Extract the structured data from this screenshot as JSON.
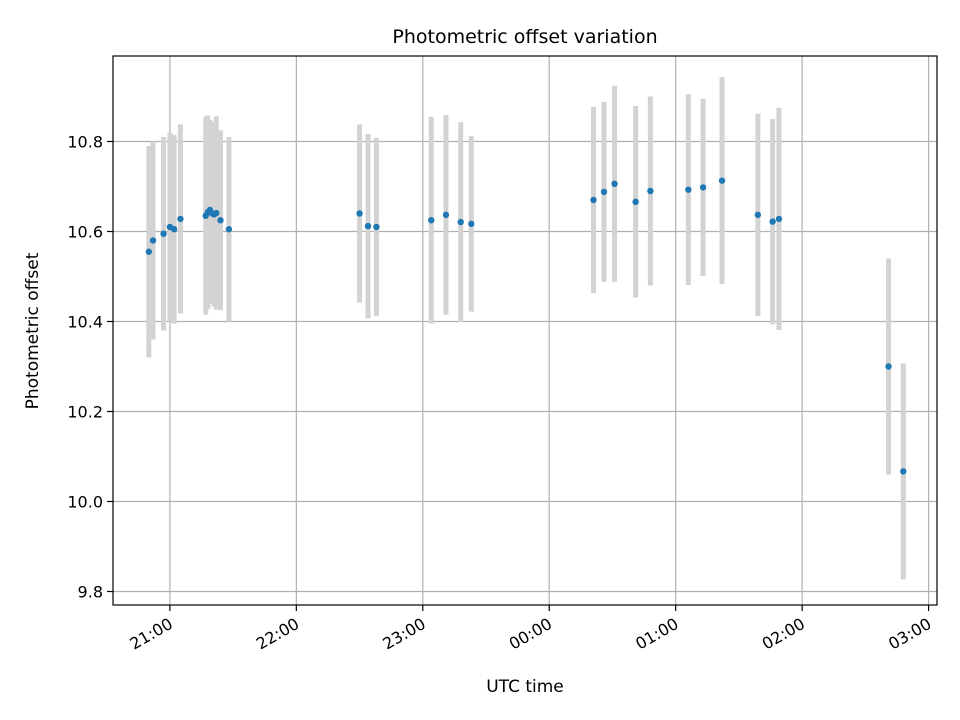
{
  "chart_data": {
    "type": "scatter",
    "title": "Photometric offset variation",
    "xlabel": "UTC time",
    "ylabel": "Photometric offset",
    "x_tick_labels": [
      "21:00",
      "22:00",
      "23:00",
      "00:00",
      "01:00",
      "02:00",
      "03:00"
    ],
    "x_tick_values": [
      0,
      60,
      120,
      180,
      240,
      300,
      360
    ],
    "y_tick_values": [
      9.8,
      10.0,
      10.2,
      10.4,
      10.6,
      10.8
    ],
    "y_tick_labels": [
      "9.8",
      "10.0",
      "10.2",
      "10.4",
      "10.6",
      "10.8"
    ],
    "xlim": [
      -27,
      364
    ],
    "ylim": [
      9.77,
      10.99
    ],
    "grid": true,
    "marker_color": "#1f77b4",
    "errorbar_color": "#d3d3d3",
    "points": [
      {
        "t": "20:50",
        "y": 10.555,
        "err": 0.235
      },
      {
        "t": "20:52",
        "y": 10.58,
        "err": 0.22
      },
      {
        "t": "20:57",
        "y": 10.595,
        "err": 0.215
      },
      {
        "t": "21:00",
        "y": 10.61,
        "err": 0.21
      },
      {
        "t": "21:02",
        "y": 10.605,
        "err": 0.21
      },
      {
        "t": "21:05",
        "y": 10.628,
        "err": 0.21
      },
      {
        "t": "21:17",
        "y": 10.635,
        "err": 0.22
      },
      {
        "t": "21:18",
        "y": 10.643,
        "err": 0.215
      },
      {
        "t": "21:19",
        "y": 10.648,
        "err": 0.2
      },
      {
        "t": "21:20",
        "y": 10.64,
        "err": 0.2
      },
      {
        "t": "21:21",
        "y": 10.638,
        "err": 0.205
      },
      {
        "t": "21:22",
        "y": 10.641,
        "err": 0.215
      },
      {
        "t": "21:24",
        "y": 10.625,
        "err": 0.2
      },
      {
        "t": "21:28",
        "y": 10.605,
        "err": 0.205
      },
      {
        "t": "22:30",
        "y": 10.64,
        "err": 0.198
      },
      {
        "t": "22:34",
        "y": 10.612,
        "err": 0.205
      },
      {
        "t": "22:38",
        "y": 10.61,
        "err": 0.198
      },
      {
        "t": "23:04",
        "y": 10.625,
        "err": 0.23
      },
      {
        "t": "23:11",
        "y": 10.637,
        "err": 0.222
      },
      {
        "t": "23:18",
        "y": 10.621,
        "err": 0.222
      },
      {
        "t": "23:23",
        "y": 10.617,
        "err": 0.195
      },
      {
        "t": "00:21",
        "y": 10.67,
        "err": 0.207
      },
      {
        "t": "00:26",
        "y": 10.688,
        "err": 0.2
      },
      {
        "t": "00:31",
        "y": 10.706,
        "err": 0.218
      },
      {
        "t": "00:41",
        "y": 10.666,
        "err": 0.213
      },
      {
        "t": "00:48",
        "y": 10.69,
        "err": 0.21
      },
      {
        "t": "01:06",
        "y": 10.693,
        "err": 0.212
      },
      {
        "t": "01:13",
        "y": 10.698,
        "err": 0.197
      },
      {
        "t": "01:22",
        "y": 10.713,
        "err": 0.23
      },
      {
        "t": "01:39",
        "y": 10.637,
        "err": 0.225
      },
      {
        "t": "01:46",
        "y": 10.622,
        "err": 0.228
      },
      {
        "t": "01:49",
        "y": 10.628,
        "err": 0.247
      },
      {
        "t": "02:41",
        "y": 10.3,
        "err": 0.24
      },
      {
        "t": "02:48",
        "y": 10.067,
        "err": 0.24
      }
    ]
  }
}
